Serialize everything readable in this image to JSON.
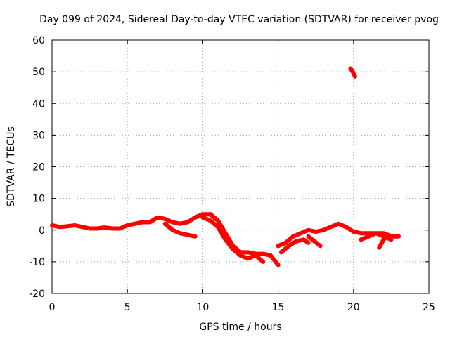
{
  "chart_data": {
    "type": "scatter",
    "title": "Day 099 of 2024, Sidereal Day-to-day VTEC variation (SDTVAR) for receiver pvog",
    "xlabel": "GPS time / hours",
    "ylabel": "SDTVAR / TECUs",
    "xlim": [
      0,
      25
    ],
    "ylim": [
      -20,
      60
    ],
    "xticks": [
      0,
      5,
      10,
      15,
      20,
      25
    ],
    "yticks": [
      -20,
      -10,
      0,
      10,
      20,
      30,
      40,
      50,
      60
    ],
    "xtick_labels": [
      "0",
      "5",
      "10",
      "15",
      "20",
      "25"
    ],
    "ytick_labels": [
      "-20",
      "-10",
      "0",
      "10",
      "20",
      "30",
      "40",
      "50",
      "60"
    ],
    "grid": true,
    "series": [
      {
        "name": "trace-main-a",
        "x": [
          0,
          0.5,
          1,
          1.5,
          2,
          2.5,
          3,
          3.5,
          4,
          4.5,
          5,
          5.5,
          6,
          6.5,
          7,
          7.5,
          8,
          8.5,
          9,
          9.5,
          10,
          10.5,
          11,
          11.5,
          12,
          12.5,
          13,
          13.5,
          14,
          14.5,
          15
        ],
        "y": [
          1.5,
          1,
          1.2,
          1.5,
          1,
          0.5,
          0.5,
          0.8,
          0.5,
          0.5,
          1.5,
          2,
          2.5,
          2.5,
          4,
          3.5,
          2.5,
          2,
          2.5,
          4,
          5,
          5,
          3,
          -1,
          -5,
          -7,
          -7,
          -7.5,
          -7.5,
          -8,
          -11
        ]
      },
      {
        "name": "trace-main-b",
        "x": [
          10,
          10.5,
          11,
          11.5,
          12,
          12.5,
          13,
          13.5,
          14
        ],
        "y": [
          4,
          3,
          1,
          -3,
          -6,
          -8,
          -9,
          -8,
          -10
        ]
      },
      {
        "name": "trace-main-c",
        "x": [
          7.5,
          8,
          8.5,
          9,
          9.5
        ],
        "y": [
          2,
          0,
          -1,
          -1.5,
          -2
        ]
      },
      {
        "name": "trace-main-d",
        "x": [
          10.5,
          11,
          11.5,
          12,
          12.5
        ],
        "y": [
          5,
          3,
          -1,
          -5,
          -8
        ]
      },
      {
        "name": "trace-late-a",
        "x": [
          15,
          15.5,
          16,
          16.5,
          17,
          17.5,
          18,
          18.5,
          19,
          19.5,
          20,
          20.5,
          21,
          21.5,
          22,
          22.5,
          23
        ],
        "y": [
          -5,
          -4,
          -2,
          -1,
          0,
          -0.5,
          0,
          1,
          2,
          1,
          -0.5,
          -1,
          -1,
          -1,
          -1,
          -2,
          -2
        ]
      },
      {
        "name": "trace-late-b",
        "x": [
          15.2,
          15.7,
          16.2,
          16.7,
          17
        ],
        "y": [
          -7,
          -5,
          -3.5,
          -3,
          -4
        ]
      },
      {
        "name": "trace-late-c",
        "x": [
          17,
          17.4,
          17.8
        ],
        "y": [
          -2,
          -3.5,
          -5
        ]
      },
      {
        "name": "trace-late-d",
        "x": [
          20.5,
          21,
          21.5,
          22,
          22.5
        ],
        "y": [
          -3,
          -2,
          -1,
          -2,
          -3
        ]
      },
      {
        "name": "trace-late-e",
        "x": [
          21.7,
          22,
          22.3
        ],
        "y": [
          -5.5,
          -3,
          -1.5
        ]
      },
      {
        "name": "trace-outlier",
        "x": [
          19.8,
          19.95,
          20.1
        ],
        "y": [
          51,
          50,
          48.5
        ]
      }
    ]
  },
  "colors": {
    "series": "#ff0000",
    "grid": "#a0a0a0",
    "axes": "#000000"
  }
}
